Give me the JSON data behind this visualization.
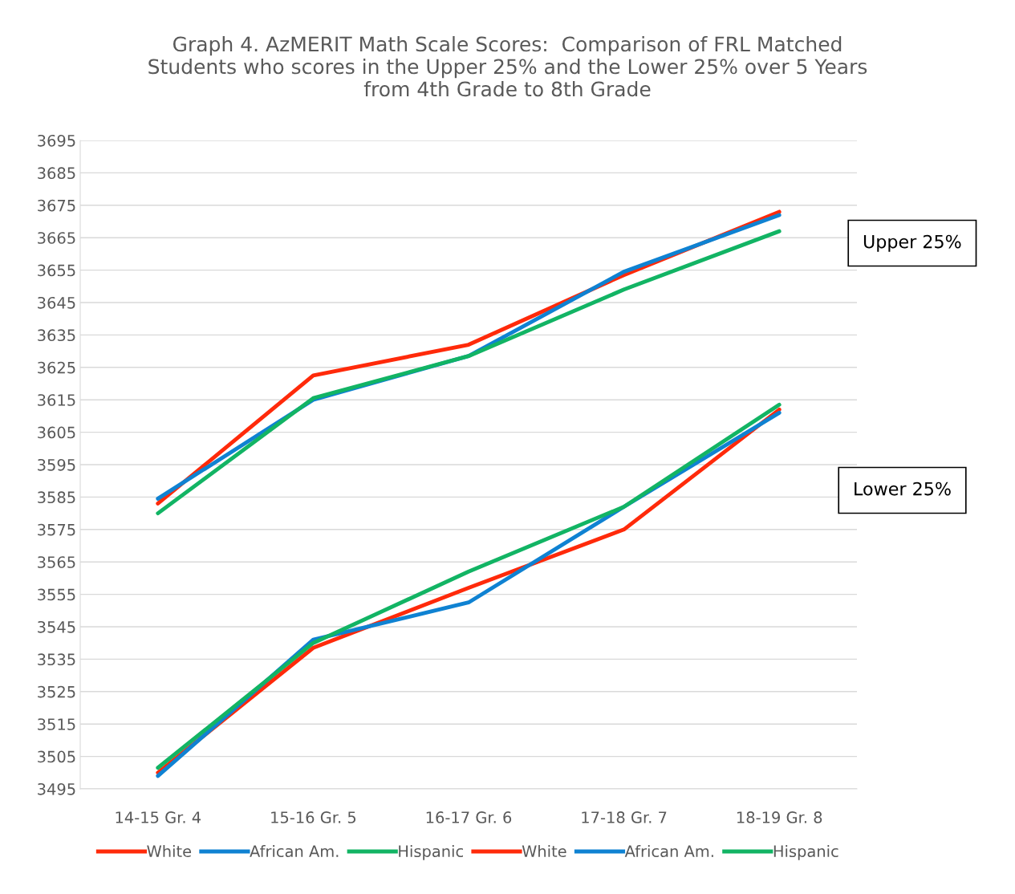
{
  "chart_data": {
    "type": "line",
    "title": "Graph 4. AzMERIT Math Scale Scores:  Comparison of FRL Matched\nStudents who scores in the Upper 25% and the Lower 25% over 5 Years\nfrom 4th Grade to 8th Grade",
    "categories": [
      "14-15 Gr. 4",
      "15-16 Gr. 5",
      "16-17 Gr. 6",
      "17-18 Gr. 7",
      "18-19 Gr. 8"
    ],
    "series": [
      {
        "name": "White",
        "color": "#ff2a0a",
        "values": [
          3583,
          3622.5,
          3632,
          3653.5,
          3673
        ]
      },
      {
        "name": "African Am.",
        "color": "#0f82d2",
        "values": [
          3584.5,
          3615,
          3628.5,
          3654.5,
          3672
        ]
      },
      {
        "name": "Hispanic",
        "color": "#12b464",
        "values": [
          3580,
          3615.5,
          3628.5,
          3649,
          3667
        ]
      },
      {
        "name": "White",
        "color": "#ff2a0a",
        "values": [
          3500,
          3538.5,
          3557,
          3575,
          3612
        ]
      },
      {
        "name": "African Am.",
        "color": "#0f82d2",
        "values": [
          3499,
          3541,
          3552.5,
          3582,
          3611
        ]
      },
      {
        "name": "Hispanic",
        "color": "#12b464",
        "values": [
          3501.5,
          3540,
          3562,
          3582,
          3613.5
        ]
      }
    ],
    "ylim": [
      3495,
      3695
    ],
    "yticks": [
      3495,
      3505,
      3515,
      3525,
      3535,
      3545,
      3555,
      3565,
      3575,
      3585,
      3595,
      3605,
      3615,
      3625,
      3635,
      3645,
      3655,
      3665,
      3675,
      3685,
      3695
    ],
    "grid": "y",
    "legend": "bottom",
    "marker": "none",
    "line_style": "solid",
    "annotations": [
      "Upper 25%",
      "Lower 25%"
    ]
  }
}
